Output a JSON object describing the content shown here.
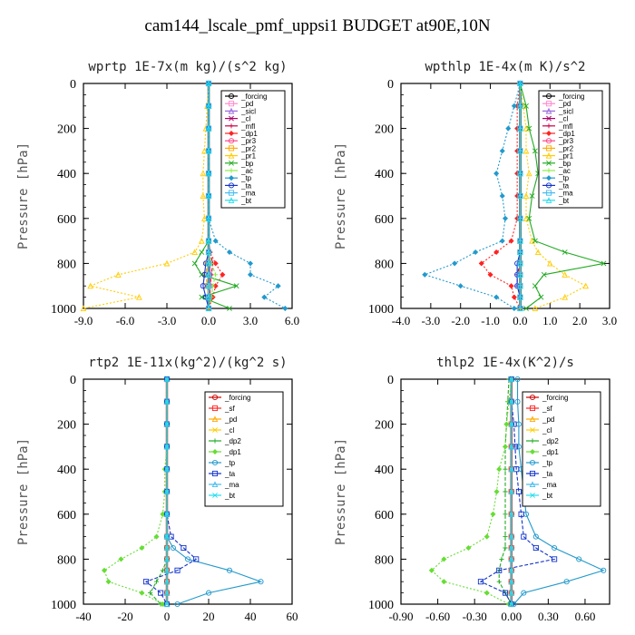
{
  "figure_title": "cam144_lscale_pmf_uppsi1  BUDGET at90E,10N",
  "chart_data": [
    {
      "type": "line",
      "title": "wprtp  1E-7x(m kg)/(s^2 kg)",
      "ylabel": "Pressure [hPa]",
      "xlim": [
        -9.0,
        6.0
      ],
      "ylim": [
        0,
        1000
      ],
      "xticks": [
        "-9.0",
        "-6.0",
        "-3.0",
        "0.0",
        "3.0",
        "6.0"
      ],
      "yticks": [
        "0",
        "200",
        "400",
        "600",
        "800",
        "1000"
      ],
      "legend_position": "top-right",
      "pressure": [
        0,
        100,
        200,
        300,
        400,
        500,
        600,
        700,
        750,
        800,
        850,
        900,
        950,
        1000
      ],
      "series": [
        {
          "name": "_forcing",
          "color": "#000000",
          "values": [
            0,
            0,
            0,
            0,
            0,
            0,
            0,
            0,
            0,
            0,
            0,
            0,
            0,
            0
          ]
        },
        {
          "name": "_pd",
          "color": "#ff88cc",
          "values": [
            0,
            0,
            0,
            0,
            0,
            0,
            0,
            0,
            0,
            0,
            0,
            0,
            0,
            0
          ]
        },
        {
          "name": "_sicl",
          "color": "#9966dd",
          "values": [
            0,
            0,
            0,
            0,
            0,
            0,
            0,
            0,
            0,
            0,
            0,
            0,
            0,
            0
          ]
        },
        {
          "name": "_cl",
          "color": "#aa0066",
          "values": [
            0,
            0,
            0,
            0,
            0,
            0,
            0,
            0,
            0,
            0,
            0,
            0,
            0,
            0
          ]
        },
        {
          "name": "_mfl",
          "color": "#cc0044",
          "values": [
            0,
            0,
            0,
            0,
            0,
            0,
            0,
            0,
            0.1,
            0.3,
            0.2,
            0.1,
            0.1,
            0
          ]
        },
        {
          "name": "_dp1",
          "color": "#ff2222",
          "values": [
            0,
            0,
            0,
            0,
            0,
            0,
            0,
            0,
            0.1,
            0.5,
            1.0,
            0.5,
            0.3,
            0
          ]
        },
        {
          "name": "_pr3",
          "color": "#ff4488",
          "values": [
            0,
            0,
            0,
            0,
            0,
            0,
            0,
            0,
            0,
            0.1,
            0.1,
            0.1,
            0,
            0
          ]
        },
        {
          "name": "_pr2",
          "color": "#ffaa00",
          "values": [
            0,
            0,
            0,
            0,
            0,
            0,
            0,
            0,
            0,
            -0.1,
            -0.2,
            -0.1,
            0,
            0
          ]
        },
        {
          "name": "_pr1",
          "color": "#ffcc00",
          "values": [
            0,
            -0.1,
            -0.2,
            -0.3,
            -0.4,
            -0.4,
            -0.3,
            -0.5,
            -1.0,
            -3.0,
            -6.5,
            -8.5,
            -5.0,
            -9.0
          ]
        },
        {
          "name": "_bp",
          "color": "#22aa22",
          "values": [
            0,
            0,
            0,
            0,
            0,
            0,
            0,
            0,
            -0.5,
            -1.0,
            -0.5,
            2.0,
            -0.5,
            1.5
          ]
        },
        {
          "name": "_ac",
          "color": "#88ee44",
          "values": [
            0,
            0,
            0,
            0,
            0,
            0,
            0,
            0,
            0,
            0.2,
            0.5,
            0.3,
            0.2,
            0
          ]
        },
        {
          "name": "_tp",
          "color": "#2299cc",
          "values": [
            0,
            0,
            0,
            0,
            0,
            0,
            0,
            0.5,
            1.5,
            3.0,
            3.0,
            5.0,
            4.0,
            5.5
          ]
        },
        {
          "name": "_ta",
          "color": "#1133cc",
          "values": [
            0,
            0,
            0,
            0,
            0,
            0,
            0,
            0,
            0,
            -0.2,
            -0.3,
            -0.4,
            -0.2,
            0
          ]
        },
        {
          "name": "_ma",
          "color": "#44bbee",
          "values": [
            0,
            0,
            0,
            0,
            0,
            0,
            0,
            0,
            0,
            0,
            0,
            0,
            0,
            0
          ]
        },
        {
          "name": "_bt",
          "color": "#22ddee",
          "values": [
            0,
            0,
            0,
            0,
            0,
            0,
            0,
            0,
            0,
            0,
            0,
            0,
            0,
            0
          ]
        }
      ]
    },
    {
      "type": "line",
      "title": "wpthlp  1E-4x(m K)/s^2",
      "ylabel": "Pressure [hPa]",
      "xlim": [
        -4.0,
        3.0
      ],
      "ylim": [
        0,
        1000
      ],
      "xticks": [
        "-4.0",
        "-3.0",
        "-2.0",
        "-1.0",
        "0.0",
        "1.0",
        "2.0",
        "3.0"
      ],
      "yticks": [
        "0",
        "200",
        "400",
        "600",
        "800",
        "1000"
      ],
      "legend_position": "top-right",
      "pressure": [
        0,
        100,
        200,
        300,
        400,
        500,
        600,
        700,
        750,
        800,
        850,
        900,
        950,
        1000
      ],
      "series": [
        {
          "name": "_forcing",
          "color": "#000000",
          "values": [
            0,
            0,
            0,
            0,
            0,
            0,
            0,
            0,
            0,
            0,
            0,
            0,
            0,
            0
          ]
        },
        {
          "name": "_pd",
          "color": "#ff88cc",
          "values": [
            0,
            0,
            0,
            0,
            0,
            0,
            0,
            0,
            0,
            0,
            0,
            0,
            0,
            0
          ]
        },
        {
          "name": "_sicl",
          "color": "#9966dd",
          "values": [
            0,
            0,
            0,
            0,
            0,
            0,
            0,
            0,
            0,
            0,
            0,
            0,
            0,
            0
          ]
        },
        {
          "name": "_cl",
          "color": "#aa0066",
          "values": [
            0,
            0,
            0,
            0,
            0,
            0,
            0,
            0,
            0,
            0,
            0,
            0,
            0,
            0
          ]
        },
        {
          "name": "_mfl",
          "color": "#cc0044",
          "values": [
            0,
            0,
            0,
            0,
            0,
            0,
            0,
            0,
            0,
            0,
            -0.1,
            -0.1,
            0,
            0
          ]
        },
        {
          "name": "_dp1",
          "color": "#ff2222",
          "values": [
            0,
            -0.1,
            -0.1,
            -0.1,
            -0.1,
            -0.1,
            -0.1,
            -0.3,
            -0.8,
            -1.3,
            -1.0,
            -0.3,
            -0.2,
            0
          ]
        },
        {
          "name": "_pr3",
          "color": "#ff4488",
          "values": [
            0,
            0,
            0,
            0,
            0,
            0,
            0,
            0,
            0,
            0,
            0,
            0,
            0,
            0
          ]
        },
        {
          "name": "_pr2",
          "color": "#ffaa00",
          "values": [
            0,
            0,
            0,
            0,
            0,
            0,
            0,
            0,
            0,
            0,
            0,
            0,
            0,
            0
          ]
        },
        {
          "name": "_pr1",
          "color": "#ffcc00",
          "values": [
            0,
            0.1,
            0.2,
            0.2,
            0.3,
            0.2,
            0.2,
            0.4,
            0.6,
            1.0,
            1.5,
            2.2,
            1.5,
            0.5
          ]
        },
        {
          "name": "_bp",
          "color": "#22aa22",
          "values": [
            0,
            0.2,
            0.3,
            0.5,
            0.6,
            0.4,
            0.3,
            0.5,
            1.5,
            2.8,
            0.8,
            0.5,
            0.7,
            0.2
          ]
        },
        {
          "name": "_ac",
          "color": "#88ee44",
          "values": [
            0,
            0,
            0,
            0,
            0,
            0,
            0,
            0,
            0,
            0,
            0,
            0,
            0,
            0
          ]
        },
        {
          "name": "_tp",
          "color": "#2299cc",
          "values": [
            0,
            -0.2,
            -0.4,
            -0.6,
            -0.8,
            -0.6,
            -0.5,
            -0.6,
            -1.5,
            -2.2,
            -3.2,
            -2.0,
            -0.8,
            -0.2
          ]
        },
        {
          "name": "_ta",
          "color": "#1133cc",
          "values": [
            0,
            0,
            0,
            0,
            0,
            0,
            0,
            0,
            0,
            -0.1,
            -0.1,
            -0.1,
            0,
            0
          ]
        },
        {
          "name": "_ma",
          "color": "#44bbee",
          "values": [
            0,
            0,
            0,
            0,
            0,
            0,
            0,
            0,
            0,
            0,
            0,
            0,
            0,
            0
          ]
        },
        {
          "name": "_bt",
          "color": "#22ddee",
          "values": [
            0,
            0,
            0,
            0,
            0,
            0,
            0,
            0,
            0,
            0,
            0,
            0,
            0,
            0
          ]
        }
      ]
    },
    {
      "type": "line",
      "title": "rtp2  1E-11x(kg^2)/(kg^2 s)",
      "ylabel": "Pressure [hPa]",
      "xlim": [
        -40,
        60
      ],
      "ylim": [
        0,
        1000
      ],
      "xticks": [
        "-40",
        "-20",
        "0",
        "20",
        "40",
        "60"
      ],
      "yticks": [
        "0",
        "200",
        "400",
        "600",
        "800",
        "1000"
      ],
      "legend_position": "top-right",
      "pressure": [
        0,
        100,
        200,
        300,
        400,
        500,
        600,
        700,
        750,
        800,
        850,
        900,
        950,
        1000
      ],
      "series": [
        {
          "name": "_forcing",
          "color": "#cc0000",
          "values": [
            0,
            0,
            0,
            0,
            0,
            0,
            0,
            0,
            0,
            0,
            0,
            0,
            0,
            0
          ]
        },
        {
          "name": "_sf",
          "color": "#ff2222",
          "values": [
            0,
            0,
            0,
            0,
            0,
            0,
            0,
            0,
            0,
            0,
            0,
            0,
            0,
            0
          ]
        },
        {
          "name": "_pd",
          "color": "#ffaa00",
          "values": [
            0,
            0,
            0,
            0,
            0,
            0,
            0,
            0,
            0,
            0,
            0,
            0,
            0,
            0
          ]
        },
        {
          "name": "_cl",
          "color": "#ffcc00",
          "values": [
            0,
            0,
            0,
            0,
            0,
            0,
            0,
            0,
            0,
            0,
            0,
            0,
            0,
            0
          ]
        },
        {
          "name": "_dp2",
          "color": "#22aa22",
          "values": [
            0,
            0,
            0,
            0,
            0,
            0,
            0,
            0,
            0,
            0,
            -2,
            -5,
            -8,
            -3
          ]
        },
        {
          "name": "_dp1",
          "color": "#66dd33",
          "values": [
            0,
            0,
            0,
            0,
            -1,
            -1,
            -2,
            -5,
            -12,
            -22,
            -30,
            -28,
            -12,
            -2
          ]
        },
        {
          "name": "_tp",
          "color": "#2299cc",
          "values": [
            0,
            0,
            0,
            0,
            0,
            0,
            0,
            0,
            3,
            10,
            30,
            45,
            20,
            5
          ]
        },
        {
          "name": "_ta",
          "color": "#1133cc",
          "values": [
            0,
            0,
            0,
            0,
            0,
            0,
            0,
            2,
            8,
            14,
            5,
            -10,
            -3,
            0
          ]
        },
        {
          "name": "_ma",
          "color": "#44bbee",
          "values": [
            0,
            0,
            0,
            0,
            0,
            0,
            0,
            0,
            0,
            0,
            0,
            0,
            0,
            0
          ]
        },
        {
          "name": "_bt",
          "color": "#22ddee",
          "values": [
            0,
            0,
            0,
            0,
            0,
            0,
            0,
            0,
            0,
            0,
            0,
            0,
            0,
            0
          ]
        }
      ]
    },
    {
      "type": "line",
      "title": "thlp2  1E-4x(K^2)/s",
      "ylabel": "Pressure [hPa]",
      "xlim": [
        -0.9,
        0.8
      ],
      "ylim": [
        0,
        1000
      ],
      "xticks": [
        "-0.90",
        "-0.60",
        "-0.30",
        "0.00",
        "0.30",
        "0.60"
      ],
      "yticks": [
        "0",
        "200",
        "400",
        "600",
        "800",
        "1000"
      ],
      "legend_position": "top-right",
      "pressure": [
        0,
        100,
        200,
        300,
        400,
        500,
        600,
        700,
        750,
        800,
        850,
        900,
        950,
        1000
      ],
      "series": [
        {
          "name": "_forcing",
          "color": "#cc0000",
          "values": [
            0,
            0,
            0,
            0,
            0,
            0,
            0,
            0,
            0,
            0,
            0,
            0,
            0,
            0
          ]
        },
        {
          "name": "_sf",
          "color": "#ff2222",
          "values": [
            0,
            0,
            0,
            0,
            0,
            0,
            0,
            0,
            0,
            0,
            0,
            0,
            0,
            0
          ]
        },
        {
          "name": "_pd",
          "color": "#ffaa00",
          "values": [
            0,
            0,
            0,
            0,
            0,
            0,
            0,
            0,
            0,
            0,
            0,
            0,
            0,
            0
          ]
        },
        {
          "name": "_cl",
          "color": "#ffcc00",
          "values": [
            0,
            0,
            0,
            0,
            0,
            0,
            0,
            0,
            0,
            0,
            0,
            0,
            0,
            0
          ]
        },
        {
          "name": "_dp2",
          "color": "#22aa22",
          "values": [
            -0.02,
            -0.03,
            -0.04,
            -0.05,
            -0.05,
            -0.05,
            -0.05,
            -0.05,
            -0.05,
            -0.08,
            -0.1,
            -0.1,
            -0.05,
            0
          ]
        },
        {
          "name": "_dp1",
          "color": "#66dd33",
          "values": [
            0,
            -0.02,
            -0.04,
            -0.05,
            -0.1,
            -0.12,
            -0.15,
            -0.2,
            -0.35,
            -0.55,
            -0.65,
            -0.55,
            -0.2,
            -0.02
          ]
        },
        {
          "name": "_tp",
          "color": "#2299cc",
          "values": [
            0.05,
            0.05,
            0.06,
            0.06,
            0.08,
            0.1,
            0.12,
            0.2,
            0.35,
            0.55,
            0.75,
            0.45,
            0.1,
            0.02
          ]
        },
        {
          "name": "_ta",
          "color": "#1133cc",
          "values": [
            0,
            0,
            0.02,
            0.03,
            0.04,
            0.06,
            0.08,
            0.1,
            0.2,
            0.35,
            -0.1,
            -0.25,
            -0.05,
            0
          ]
        },
        {
          "name": "_ma",
          "color": "#44bbee",
          "values": [
            0,
            0,
            0,
            0,
            0,
            0,
            0,
            0,
            0,
            0,
            0,
            0,
            0,
            0
          ]
        },
        {
          "name": "_bt",
          "color": "#22ddee",
          "values": [
            0,
            0,
            0,
            0,
            0,
            0,
            0,
            0,
            0,
            0,
            0,
            0,
            0,
            0
          ]
        }
      ]
    }
  ]
}
